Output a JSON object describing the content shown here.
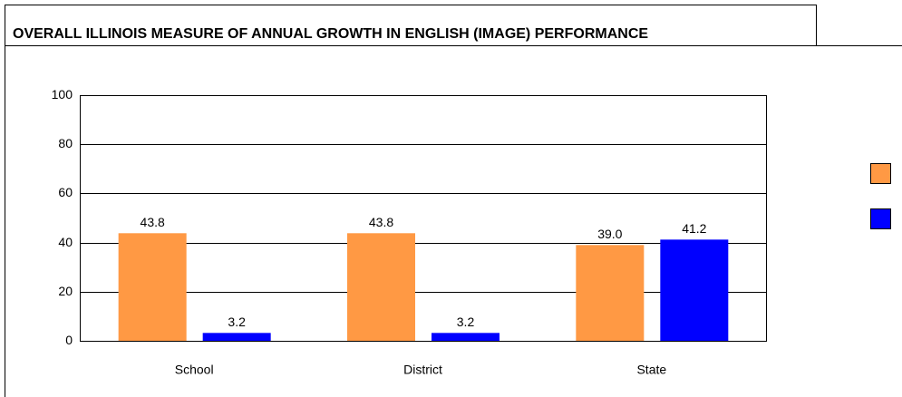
{
  "chart_data": {
    "type": "bar",
    "title": "OVERALL ILLINOIS MEASURE OF ANNUAL GROWTH IN ENGLISH (IMAGE) PERFORMANCE",
    "categories": [
      "School",
      "District",
      "State"
    ],
    "series": [
      {
        "color": "#ff9944",
        "values": [
          43.8,
          43.8,
          39.0
        ],
        "value_labels": [
          "43.8",
          "43.8",
          "39.0"
        ]
      },
      {
        "color": "#0000ff",
        "values": [
          3.2,
          3.2,
          41.2
        ],
        "value_labels": [
          "3.2",
          "3.2",
          "41.2"
        ]
      }
    ],
    "ylim": [
      0,
      100
    ],
    "yticks": [
      0,
      20,
      40,
      60,
      80,
      100
    ],
    "grid": true
  }
}
